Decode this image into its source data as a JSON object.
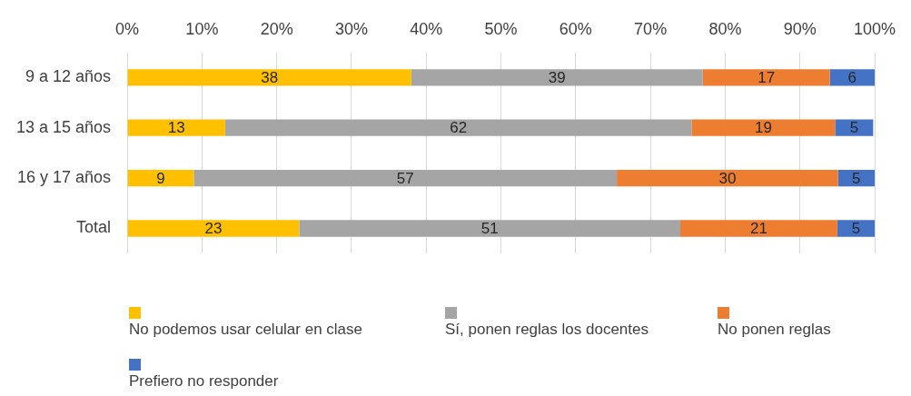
{
  "chart_data": {
    "type": "bar",
    "orientation": "horizontal",
    "stacked": true,
    "categories": [
      "9 a 12 años",
      "13 a 15 años",
      "16 y 17 años",
      "Total"
    ],
    "series": [
      {
        "name": "No podemos usar celular en clase",
        "color": "#ffc000",
        "values": [
          38,
          13.1,
          8.9,
          23
        ],
        "value_labels": [
          "38",
          "13",
          "9",
          "23"
        ]
      },
      {
        "name": "Sí, ponen reglas los docentes",
        "color": "#a5a5a5",
        "values": [
          39,
          62.4,
          56.6,
          51
        ],
        "value_labels": [
          "39",
          "62",
          "57",
          "51"
        ]
      },
      {
        "name": "No ponen reglas",
        "color": "#ed7d31",
        "values": [
          17,
          19.2,
          29.6,
          21
        ],
        "value_labels": [
          "17",
          "19",
          "30",
          "21"
        ]
      },
      {
        "name": "Prefiero no responder",
        "color": "#4472c4",
        "values": [
          6,
          5.1,
          4.9,
          5
        ],
        "value_labels": [
          "6",
          "5",
          "5",
          "5"
        ]
      }
    ],
    "xlim": [
      0,
      100
    ],
    "xticks": [
      {
        "value": 0,
        "label": "0%"
      },
      {
        "value": 10,
        "label": "10%"
      },
      {
        "value": 20,
        "label": "20%"
      },
      {
        "value": 30,
        "label": "30%"
      },
      {
        "value": 40,
        "label": "40%"
      },
      {
        "value": 50,
        "label": "50%"
      },
      {
        "value": 60,
        "label": "60%"
      },
      {
        "value": 70,
        "label": "70%"
      },
      {
        "value": 80,
        "label": "80%"
      },
      {
        "value": 90,
        "label": "90%"
      },
      {
        "value": 100,
        "label": "100%"
      }
    ],
    "grid": "x",
    "legend": "bottom"
  }
}
